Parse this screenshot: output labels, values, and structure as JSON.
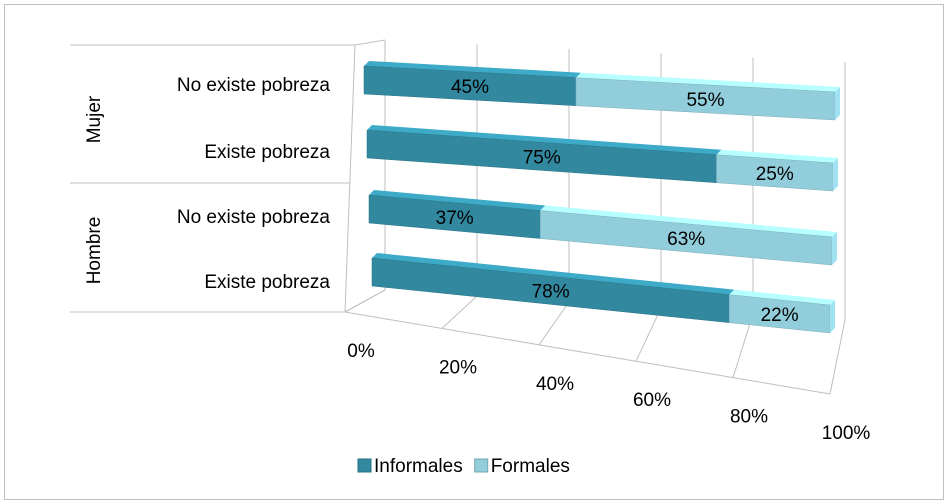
{
  "chart_data": {
    "type": "bar",
    "orientation": "horizontal",
    "stacked": true,
    "groups": [
      {
        "name": "Mujer",
        "categories": [
          "No existe pobreza",
          "Existe pobreza"
        ]
      },
      {
        "name": "Hombre",
        "categories": [
          "No existe pobreza",
          "Existe pobreza"
        ]
      }
    ],
    "series": [
      {
        "name": "Informales",
        "color": "#31889f",
        "values": [
          45,
          75,
          37,
          78
        ],
        "value_labels": [
          "45%",
          "75%",
          "37%",
          "78%"
        ]
      },
      {
        "name": "Formales",
        "color": "#92cddc",
        "values": [
          55,
          25,
          63,
          22
        ],
        "value_labels": [
          "55%",
          "25%",
          "63%",
          "22%"
        ]
      }
    ],
    "xlim": [
      0,
      100
    ],
    "xticks": [
      {
        "value": 0,
        "label": "0%"
      },
      {
        "value": 20,
        "label": "20%"
      },
      {
        "value": 40,
        "label": "40%"
      },
      {
        "value": 60,
        "label": "60%"
      },
      {
        "value": 80,
        "label": "80%"
      },
      {
        "value": 100,
        "label": "100%"
      }
    ],
    "grid": true,
    "legend": "bottom"
  }
}
